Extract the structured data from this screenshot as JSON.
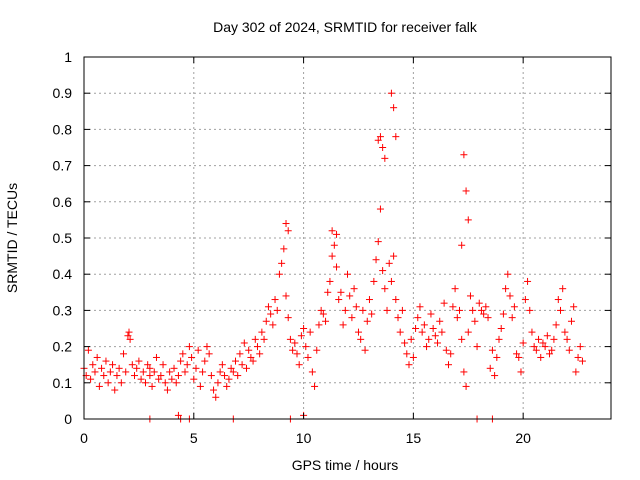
{
  "chart_data": {
    "type": "scatter",
    "title": "Day 302 of 2024, SRMTID for receiver falk",
    "xlabel": "GPS time / hours",
    "ylabel": "SRMTID / TECUs",
    "xlim": [
      0,
      24
    ],
    "ylim": [
      0,
      1
    ],
    "xticks": [
      0,
      5,
      10,
      15,
      20
    ],
    "xtick_labels": [
      "0",
      "5",
      "10",
      "15",
      "20"
    ],
    "yticks": [
      0,
      0.1,
      0.2,
      0.3,
      0.4,
      0.5,
      0.6,
      0.7,
      0.8,
      0.9,
      1
    ],
    "ytick_labels": [
      "0",
      "0.1",
      "0.2",
      "0.3",
      "0.4",
      "0.5",
      "0.6",
      "0.7",
      "0.8",
      "0.9",
      "1"
    ],
    "grid": true,
    "marker": "+",
    "color": "#ff0000",
    "series": [
      {
        "name": "SRMTID",
        "x": [
          0.0,
          0.1,
          0.2,
          0.3,
          0.4,
          0.5,
          0.6,
          0.7,
          0.8,
          0.9,
          1.0,
          1.1,
          1.2,
          1.3,
          1.4,
          1.5,
          1.6,
          1.7,
          1.8,
          1.9,
          2.0,
          2.05,
          2.1,
          2.2,
          2.3,
          2.4,
          2.5,
          2.6,
          2.7,
          2.8,
          2.9,
          3.0,
          3.0,
          3.1,
          3.2,
          3.3,
          3.4,
          3.5,
          3.6,
          3.7,
          3.8,
          3.9,
          4.0,
          4.1,
          4.2,
          4.3,
          4.4,
          4.5,
          4.6,
          4.7,
          4.8,
          4.9,
          5.0,
          5.1,
          5.2,
          5.3,
          5.4,
          5.5,
          5.6,
          5.7,
          5.8,
          5.9,
          6.0,
          6.1,
          6.2,
          6.3,
          6.4,
          6.5,
          6.6,
          6.7,
          6.8,
          6.9,
          7.0,
          7.1,
          7.2,
          7.3,
          7.4,
          7.5,
          7.6,
          7.7,
          7.8,
          7.9,
          8.0,
          8.1,
          8.2,
          8.3,
          8.4,
          8.5,
          8.6,
          8.7,
          8.8,
          8.9,
          9.0,
          9.1,
          9.2,
          9.3,
          9.4,
          9.5,
          9.6,
          9.7,
          9.8,
          9.9,
          10.0,
          10.1,
          10.2,
          10.3,
          10.4,
          10.5,
          10.6,
          10.7,
          10.8,
          10.9,
          11.0,
          11.1,
          11.2,
          11.3,
          11.4,
          11.5,
          11.6,
          11.7,
          11.8,
          11.9,
          12.0,
          12.1,
          12.2,
          12.3,
          12.4,
          12.5,
          12.6,
          12.7,
          12.8,
          12.9,
          13.0,
          13.1,
          13.2,
          13.3,
          13.4,
          13.5,
          13.6,
          13.7,
          13.8,
          13.9,
          14.0,
          14.1,
          14.2,
          14.3,
          14.4,
          14.5,
          14.6,
          14.7,
          14.8,
          14.9,
          15.0,
          15.1,
          15.2,
          15.3,
          15.4,
          15.5,
          15.6,
          15.7,
          15.8,
          15.9,
          16.0,
          16.1,
          16.2,
          16.3,
          16.4,
          16.5,
          16.6,
          16.7,
          16.8,
          16.9,
          17.0,
          17.1,
          17.2,
          17.3,
          17.4,
          17.5,
          17.6,
          17.7,
          17.8,
          17.9,
          18.0,
          18.1,
          18.2,
          18.3,
          18.4,
          18.5,
          18.6,
          18.7,
          18.8,
          18.9,
          19.0,
          19.1,
          19.2,
          19.3,
          19.4,
          19.5,
          19.6,
          19.7,
          19.8,
          19.9,
          20.0,
          20.1,
          20.2,
          20.3,
          20.4,
          20.5,
          20.6,
          20.7,
          20.8,
          20.9,
          21.0,
          21.1,
          21.2,
          21.3,
          21.4,
          21.5,
          21.6,
          21.7,
          21.8,
          21.9,
          22.0,
          22.1,
          22.2,
          22.3,
          22.4,
          22.5,
          22.6,
          22.7,
          13.4,
          13.5,
          13.6,
          13.7,
          14.0,
          14.1,
          14.2,
          17.3,
          17.4,
          17.5,
          17.2,
          9.2,
          9.3,
          11.3,
          11.5,
          3.0,
          4.3,
          4.4,
          4.8,
          6.8,
          9.4,
          10.0,
          17.9,
          18.6
        ],
        "y": [
          0.14,
          0.12,
          0.19,
          0.11,
          0.15,
          0.13,
          0.17,
          0.09,
          0.14,
          0.12,
          0.16,
          0.1,
          0.13,
          0.15,
          0.08,
          0.12,
          0.14,
          0.1,
          0.18,
          0.13,
          0.23,
          0.24,
          0.22,
          0.15,
          0.12,
          0.14,
          0.16,
          0.11,
          0.13,
          0.1,
          0.15,
          0.12,
          0.14,
          0.09,
          0.13,
          0.17,
          0.11,
          0.12,
          0.15,
          0.1,
          0.08,
          0.13,
          0.11,
          0.14,
          0.1,
          0.12,
          0.16,
          0.18,
          0.13,
          0.15,
          0.2,
          0.17,
          0.11,
          0.14,
          0.19,
          0.09,
          0.13,
          0.16,
          0.2,
          0.18,
          0.12,
          0.08,
          0.06,
          0.1,
          0.13,
          0.15,
          0.12,
          0.09,
          0.11,
          0.14,
          0.13,
          0.16,
          0.12,
          0.18,
          0.15,
          0.21,
          0.14,
          0.19,
          0.17,
          0.16,
          0.22,
          0.2,
          0.18,
          0.24,
          0.22,
          0.27,
          0.31,
          0.29,
          0.26,
          0.33,
          0.3,
          0.4,
          0.43,
          0.47,
          0.34,
          0.28,
          0.22,
          0.19,
          0.21,
          0.18,
          0.15,
          0.23,
          0.25,
          0.2,
          0.17,
          0.24,
          0.13,
          0.09,
          0.19,
          0.26,
          0.3,
          0.29,
          0.27,
          0.35,
          0.38,
          0.45,
          0.48,
          0.42,
          0.33,
          0.35,
          0.26,
          0.3,
          0.4,
          0.34,
          0.28,
          0.36,
          0.31,
          0.24,
          0.22,
          0.3,
          0.19,
          0.27,
          0.33,
          0.29,
          0.38,
          0.44,
          0.49,
          0.58,
          0.41,
          0.36,
          0.3,
          0.43,
          0.38,
          0.45,
          0.33,
          0.28,
          0.24,
          0.3,
          0.21,
          0.18,
          0.15,
          0.22,
          0.17,
          0.25,
          0.28,
          0.31,
          0.24,
          0.26,
          0.2,
          0.22,
          0.29,
          0.25,
          0.23,
          0.21,
          0.27,
          0.24,
          0.32,
          0.19,
          0.15,
          0.18,
          0.31,
          0.36,
          0.28,
          0.3,
          0.22,
          0.13,
          0.09,
          0.24,
          0.34,
          0.3,
          0.27,
          0.2,
          0.32,
          0.3,
          0.29,
          0.31,
          0.28,
          0.14,
          0.19,
          0.12,
          0.17,
          0.22,
          0.25,
          0.29,
          0.36,
          0.4,
          0.34,
          0.28,
          0.31,
          0.18,
          0.17,
          0.13,
          0.21,
          0.33,
          0.38,
          0.3,
          0.24,
          0.2,
          0.19,
          0.22,
          0.17,
          0.21,
          0.2,
          0.23,
          0.18,
          0.19,
          0.22,
          0.26,
          0.33,
          0.3,
          0.36,
          0.24,
          0.22,
          0.19,
          0.27,
          0.31,
          0.13,
          0.17,
          0.2,
          0.16,
          0.77,
          0.78,
          0.75,
          0.72,
          0.9,
          0.86,
          0.78,
          0.73,
          0.63,
          0.55,
          0.48,
          0.54,
          0.52,
          0.52,
          0.51,
          0.0,
          0.01,
          0.0,
          0.0,
          0.0,
          0.0,
          0.01,
          0.0,
          0.0
        ]
      }
    ]
  }
}
